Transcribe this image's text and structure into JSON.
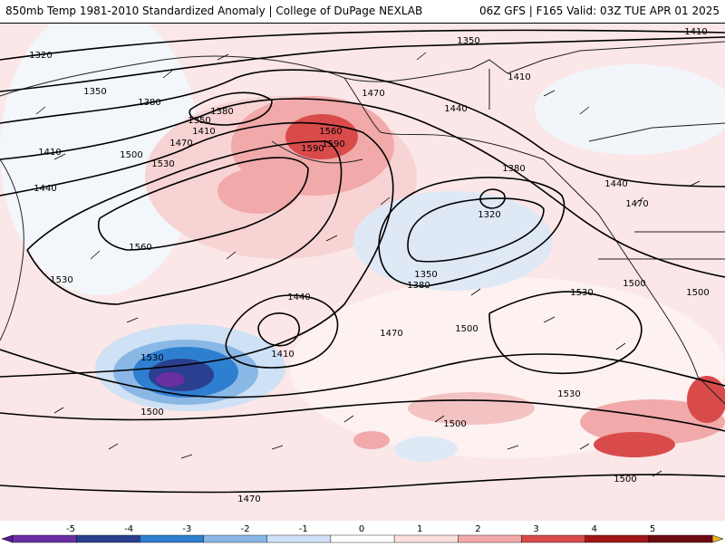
{
  "header": {
    "left_title": "850mb Temp 1981-2010 Standardized Anomaly | College of DuPage NEXLAB",
    "right_title": "06Z GFS  |  F165 Valid: 03Z TUE APR 01 2025"
  },
  "contour_labels": [
    "1320",
    "1350",
    "1380",
    "1410",
    "1440",
    "1470",
    "1500",
    "1530",
    "1560",
    "1590",
    "1350",
    "1380",
    "1410",
    "1470",
    "1500",
    "1530",
    "1560",
    "1590",
    "1320",
    "1350",
    "1380",
    "1410",
    "1440",
    "1470",
    "1500",
    "1530",
    "1440",
    "1410",
    "1500",
    "1530",
    "1500",
    "1470",
    "1500",
    "1500",
    "1530",
    "1380",
    "1350",
    "1410",
    "1440",
    "1470"
  ],
  "colorbar": {
    "ticks": [
      "-5",
      "-4",
      "-3",
      "-2",
      "-1",
      "0",
      "1",
      "2",
      "3",
      "4",
      "5"
    ],
    "colors": [
      "#6b2fa3",
      "#2a3f8f",
      "#2f7fd0",
      "#8ab8e6",
      "#cfe1f4",
      "#ffffff",
      "#fbe0e0",
      "#f1a9a9",
      "#d94b4b",
      "#a11616",
      "#6e0a12"
    ],
    "end_colors": [
      "#5a1a9a",
      "#f0b020"
    ]
  }
}
